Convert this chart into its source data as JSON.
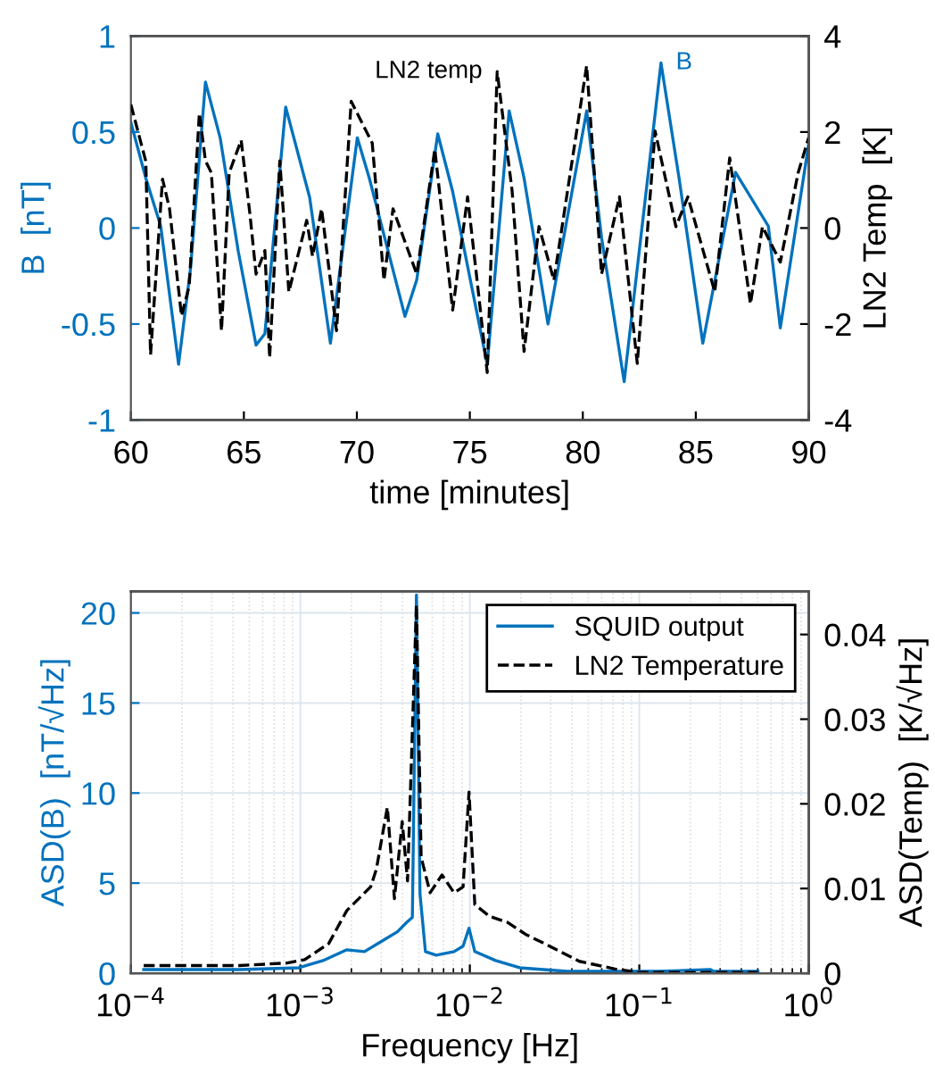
{
  "chart_data": [
    {
      "type": "line",
      "xlabel": "time [minutes]",
      "ylabel": "B  [nT]",
      "y2label": "LN2 Temp  [K]",
      "xlim": [
        60,
        90
      ],
      "xticks": [
        60,
        65,
        70,
        75,
        80,
        85,
        90
      ],
      "ylim": [
        -1,
        1
      ],
      "yticks": [
        -1,
        -0.5,
        0,
        0.5,
        1
      ],
      "y2lim": [
        -4,
        4
      ],
      "y2ticks": [
        -4,
        -2,
        0,
        2,
        4
      ],
      "grid": false,
      "legend": false,
      "series": [
        {
          "name": "B",
          "color": "#0072bd",
          "line_style": "solid",
          "x": [
            60,
            60.66,
            61.32,
            62.11,
            62.64,
            63.3,
            63.95,
            64.75,
            65.54,
            65.93,
            66.85,
            67.91,
            68.83,
            70.02,
            70.55,
            72.13,
            72.65,
            73.58,
            74.24,
            75.77,
            76.74,
            77.4,
            78.46,
            80.17,
            80.83,
            81.83,
            83.46,
            84.26,
            85.31,
            86.76,
            88.21,
            88.74,
            90
          ],
          "values": [
            0.55,
            0.26,
            0.01,
            -0.71,
            -0.21,
            0.76,
            0.47,
            -0.12,
            -0.61,
            -0.55,
            0.63,
            0.16,
            -0.6,
            0.47,
            0.26,
            -0.46,
            -0.27,
            0.49,
            0.19,
            -0.71,
            0.61,
            0.26,
            -0.5,
            0.61,
            -0.05,
            -0.8,
            0.86,
            0.26,
            -0.6,
            0.29,
            0.01,
            -0.52,
            0.44
          ]
        },
        {
          "name": "LN2 temp",
          "color": "#000000",
          "line_style": "dashed",
          "axis": "y2",
          "x": [
            60,
            60.66,
            60.87,
            61.4,
            61.71,
            62.24,
            62.58,
            63.03,
            63.3,
            63.56,
            64.01,
            64.35,
            64.88,
            65.27,
            65.54,
            65.93,
            66.14,
            66.59,
            66.99,
            67.78,
            68.04,
            68.44,
            69.1,
            69.75,
            70.68,
            71.2,
            71.6,
            72.65,
            73.45,
            74.24,
            74.9,
            75.29,
            75.77,
            76.21,
            76.87,
            77.4,
            78.06,
            78.72,
            80.17,
            80.83,
            81.62,
            82.41,
            83.2,
            84.12,
            84.65,
            85.84,
            86.5,
            87.42,
            87.95,
            88.74,
            89.53,
            90
          ],
          "values": [
            2.57,
            1.39,
            -2.64,
            1.02,
            0.4,
            -1.83,
            -1.21,
            2.39,
            1.4,
            1.15,
            -2.14,
            1.15,
            1.83,
            0.28,
            -0.96,
            -0.47,
            -2.7,
            1.4,
            -1.33,
            0.16,
            -0.59,
            0.4,
            -2.14,
            2.64,
            1.77,
            -1.09,
            0.4,
            -0.96,
            1.64,
            -1.71,
            0.65,
            -0.96,
            -3.01,
            3.26,
            0.78,
            -2.57,
            0.03,
            -1.09,
            3.38,
            -0.96,
            0.65,
            -2.82,
            2.02,
            0.03,
            0.65,
            -1.33,
            1.46,
            -1.58,
            0.03,
            -0.71,
            1.15,
            1.89
          ]
        }
      ]
    },
    {
      "type": "line",
      "xlabel": "Frequency [Hz]",
      "ylabel": "ASD(B)  [nT/√Hz]",
      "y2label": "ASD(Temp)  [K/√Hz]",
      "log": "x",
      "xlim": [
        0.0001,
        1
      ],
      "xticks": [
        {
          "value": 0.0001,
          "label": "10$^{−4}$"
        },
        {
          "value": 0.001,
          "label": "10$^{−3}$"
        },
        {
          "value": 0.01,
          "label": "10$^{−2}$"
        },
        {
          "value": 0.1,
          "label": "10$^{−1}$"
        },
        {
          "value": 1,
          "label": "10$^{0}$"
        }
      ],
      "ylim": [
        0,
        21.2
      ],
      "yticks": [
        0,
        5,
        10,
        15,
        20
      ],
      "y2lim": [
        0,
        0.0451
      ],
      "y2ticks": [
        0,
        0.01,
        0.02,
        0.03,
        0.04
      ],
      "grid": true,
      "legend": "top right",
      "series": [
        {
          "name": "SQUID output",
          "color": "#0072bd",
          "line_style": "solid",
          "x": [
            0.000119,
            0.000436,
            0.00098,
            0.00136,
            0.00188,
            0.00239,
            0.00305,
            0.00374,
            0.00422,
            0.00458,
            0.00484,
            0.00508,
            0.00547,
            0.00633,
            0.00807,
            0.00912,
            0.00989,
            0.0107,
            0.0142,
            0.0197,
            0.0376,
            0.127,
            0.263,
            0.274,
            0.502
          ],
          "values": [
            0.2,
            0.2,
            0.3,
            0.7,
            1.3,
            1.2,
            1.8,
            2.3,
            2.8,
            3.1,
            21,
            4.4,
            1.2,
            1.0,
            1.2,
            1.5,
            2.5,
            1.2,
            0.7,
            0.3,
            0.1,
            0.1,
            0.2,
            0.1,
            0.1
          ]
        },
        {
          "name": "LN2 Temperature",
          "color": "#000000",
          "line_style": "dashed",
          "axis": "y2",
          "x": [
            0.000119,
            0.000436,
            0.000836,
            0.00106,
            0.00147,
            0.00188,
            0.00221,
            0.0026,
            0.00281,
            0.00326,
            0.00359,
            0.00399,
            0.00429,
            0.00484,
            0.00516,
            0.00583,
            0.00685,
            0.00807,
            0.00912,
            0.00989,
            0.0107,
            0.0131,
            0.0167,
            0.0213,
            0.0295,
            0.0443,
            0.0719,
            0.0993,
            0.502
          ],
          "values": [
            0.0009,
            0.0009,
            0.0012,
            0.0016,
            0.0035,
            0.0074,
            0.0088,
            0.0102,
            0.0123,
            0.0196,
            0.0088,
            0.0179,
            0.0109,
            0.0435,
            0.0137,
            0.0095,
            0.0116,
            0.0095,
            0.0102,
            0.0214,
            0.0081,
            0.0067,
            0.006,
            0.0046,
            0.0032,
            0.0014,
            0.0005,
            0.0001,
            0.0001
          ]
        }
      ]
    }
  ]
}
